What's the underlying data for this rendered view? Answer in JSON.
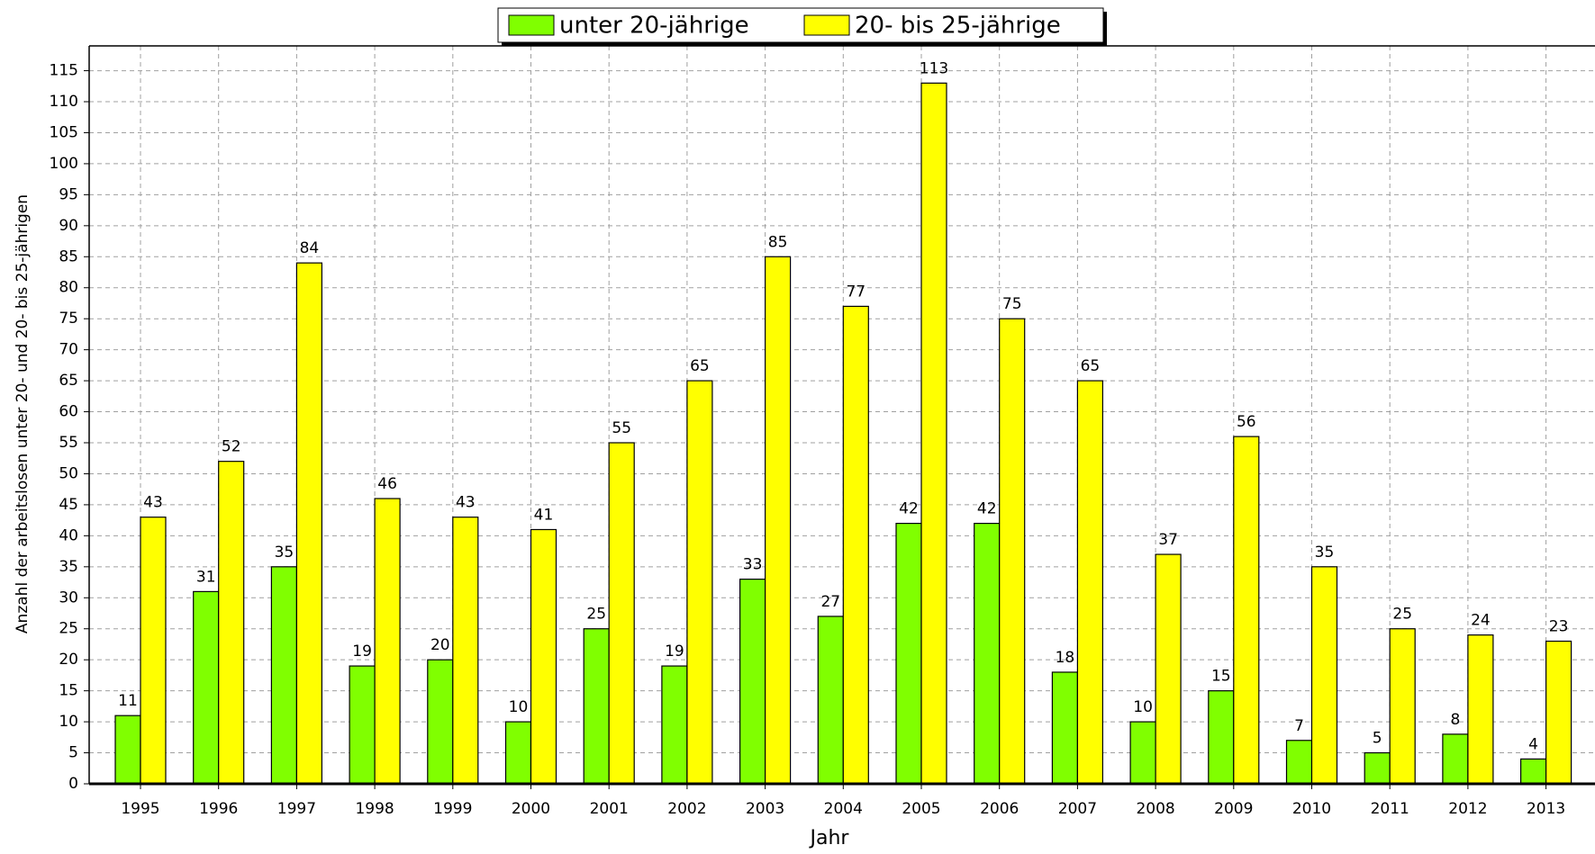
{
  "chart_data": {
    "type": "bar",
    "y_label": "Anzahl der arbeitslosen unter 20- und 20- bis 25-jährigen",
    "x_label": "Jahr",
    "categories": [
      "1995",
      "1996",
      "1997",
      "1998",
      "1999",
      "2000",
      "2001",
      "2002",
      "2003",
      "2004",
      "2005",
      "2006",
      "2007",
      "2008",
      "2009",
      "2010",
      "2011",
      "2012",
      "2013"
    ],
    "series": [
      {
        "name": "unter 20-jährige",
        "color": "#80ff00",
        "values": [
          11,
          31,
          35,
          19,
          20,
          10,
          25,
          19,
          33,
          27,
          42,
          42,
          18,
          10,
          15,
          7,
          5,
          8,
          4
        ]
      },
      {
        "name": "20- bis 25-jährige",
        "color": "#ffff00",
        "values": [
          43,
          52,
          84,
          46,
          43,
          41,
          55,
          65,
          85,
          77,
          113,
          75,
          65,
          37,
          56,
          35,
          25,
          24,
          23
        ]
      }
    ],
    "ylim": [
      0,
      119
    ],
    "yticks": [
      0,
      5,
      10,
      15,
      20,
      25,
      30,
      35,
      40,
      45,
      50,
      55,
      60,
      65,
      70,
      75,
      80,
      85,
      90,
      95,
      100,
      105,
      110,
      115
    ],
    "grid": true
  }
}
